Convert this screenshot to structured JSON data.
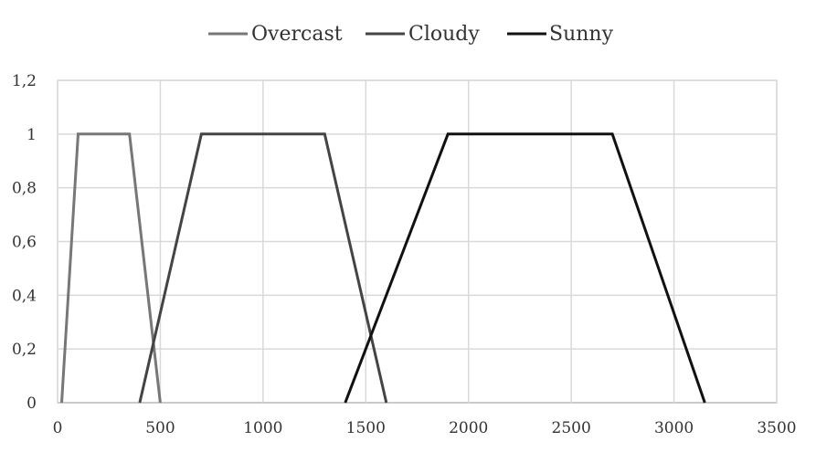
{
  "chart_data": {
    "type": "line",
    "title": "",
    "xlabel": "",
    "ylabel": "",
    "xlim": [
      0,
      3500
    ],
    "ylim": [
      0,
      1.2
    ],
    "grid": true,
    "legend_position": "top",
    "x_ticks": [
      {
        "value": 0,
        "label": "0"
      },
      {
        "value": 500,
        "label": "500"
      },
      {
        "value": 1000,
        "label": "1000"
      },
      {
        "value": 1500,
        "label": "1500"
      },
      {
        "value": 2000,
        "label": "2000"
      },
      {
        "value": 2500,
        "label": "2500"
      },
      {
        "value": 3000,
        "label": "3000"
      },
      {
        "value": 3500,
        "label": "3500"
      }
    ],
    "y_ticks": [
      {
        "value": 0,
        "label": "0"
      },
      {
        "value": 0.2,
        "label": "0,2"
      },
      {
        "value": 0.4,
        "label": "0,4"
      },
      {
        "value": 0.6,
        "label": "0,6"
      },
      {
        "value": 0.8,
        "label": "0,8"
      },
      {
        "value": 1,
        "label": "1"
      },
      {
        "value": 1.2,
        "label": "1,2"
      }
    ],
    "series": [
      {
        "name": "Overcast",
        "color": "#777777",
        "x": [
          20,
          100,
          350,
          500
        ],
        "y": [
          0,
          1,
          1,
          0
        ]
      },
      {
        "name": "Cloudy",
        "color": "#444444",
        "x": [
          400,
          700,
          1300,
          1600
        ],
        "y": [
          0,
          1,
          1,
          0
        ]
      },
      {
        "name": "Sunny",
        "color": "#111111",
        "x": [
          1400,
          1900,
          2700,
          3150
        ],
        "y": [
          0,
          1,
          1,
          0
        ]
      }
    ]
  }
}
